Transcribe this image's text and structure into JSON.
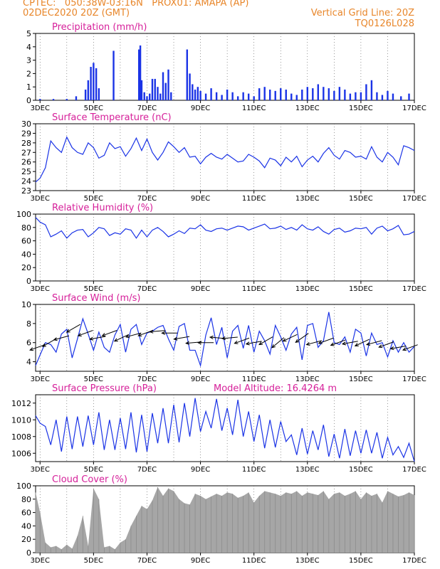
{
  "header": {
    "line1": "CPTEC:   050:38W-03:16N   PROX01: AMAPA (AP)",
    "line2_left": "02DEC2020 20Z (GMT)",
    "line2_right": "Vertical Grid Line: 20Z",
    "line3_right": "TQ0126L028"
  },
  "colors": {
    "header": "#e8862a",
    "title": "#d6209a",
    "line": "#1a33e6",
    "bars": "#1a33e6",
    "cloud": "#a6a6a6",
    "wind": "#000000"
  },
  "x_axis": {
    "day_start": 2.8333,
    "day_end": 17.0,
    "ticks": [
      {
        "day": 3,
        "label": "3DEC"
      },
      {
        "day": 5,
        "label": "5DEC"
      },
      {
        "day": 7,
        "label": "7DEC"
      },
      {
        "day": 9,
        "label": "9DEC"
      },
      {
        "day": 11,
        "label": "11DEC"
      },
      {
        "day": 13,
        "label": "13DEC"
      },
      {
        "day": 15,
        "label": "15DEC"
      },
      {
        "day": 17,
        "label": "17DEC"
      }
    ]
  },
  "chart_data": [
    {
      "id": "precip",
      "type": "bar",
      "title": "Precipitation (mm/h)",
      "units": "mm/h",
      "ylim": [
        0,
        5
      ],
      "yticks": [
        0,
        1,
        2,
        3,
        4,
        5
      ],
      "x_days": [
        3.0,
        3.5,
        4.0,
        4.35,
        4.7,
        4.8,
        4.9,
        5.0,
        5.1,
        5.2,
        5.75,
        6.7,
        6.75,
        6.8,
        6.9,
        7.0,
        7.1,
        7.2,
        7.3,
        7.4,
        7.5,
        7.6,
        7.7,
        7.8,
        7.9,
        8.5,
        8.6,
        8.7,
        8.8,
        8.9,
        9.0,
        9.2,
        9.4,
        9.6,
        9.8,
        10.0,
        10.2,
        10.4,
        10.6,
        10.8,
        11.0,
        11.2,
        11.4,
        11.6,
        11.8,
        12.0,
        12.2,
        12.4,
        12.6,
        12.8,
        13.0,
        13.2,
        13.4,
        13.6,
        13.8,
        14.0,
        14.2,
        14.4,
        14.6,
        14.8,
        15.0,
        15.2,
        15.4,
        15.6,
        15.8,
        16.0,
        16.2,
        16.5,
        16.8
      ],
      "values": [
        0.1,
        0.1,
        0.1,
        0.3,
        0.8,
        1.5,
        2.5,
        2.8,
        2.4,
        0.9,
        3.7,
        3.8,
        4.1,
        1.5,
        0.6,
        0.3,
        0.5,
        1.6,
        1.6,
        1.0,
        0.5,
        2.1,
        1.3,
        2.3,
        0.6,
        3.8,
        2.0,
        1.2,
        0.8,
        1.0,
        0.7,
        0.5,
        0.9,
        0.6,
        0.4,
        0.8,
        0.6,
        0.3,
        0.6,
        0.5,
        0.3,
        0.9,
        1.0,
        0.8,
        0.7,
        0.9,
        0.8,
        0.5,
        0.4,
        0.8,
        1.0,
        0.9,
        1.2,
        1.0,
        0.9,
        0.7,
        1.0,
        0.8,
        0.5,
        0.6,
        0.6,
        1.2,
        1.5,
        0.6,
        0.4,
        0.7,
        0.5,
        0.3,
        0.5
      ]
    },
    {
      "id": "temp",
      "type": "line",
      "title": "Surface Temperature (nC)",
      "units": "C",
      "ylim": [
        23,
        30
      ],
      "yticks": [
        23,
        24,
        25,
        26,
        27,
        28,
        29,
        30
      ],
      "x_days": [
        2.833,
        3.0,
        3.2,
        3.4,
        3.6,
        3.8,
        4.0,
        4.2,
        4.4,
        4.6,
        4.8,
        5.0,
        5.2,
        5.4,
        5.6,
        5.8,
        6.0,
        6.2,
        6.4,
        6.6,
        6.8,
        7.0,
        7.2,
        7.4,
        7.6,
        7.8,
        8.0,
        8.2,
        8.4,
        8.6,
        8.8,
        9.0,
        9.2,
        9.4,
        9.6,
        9.8,
        10.0,
        10.2,
        10.4,
        10.6,
        10.8,
        11.0,
        11.2,
        11.4,
        11.6,
        11.8,
        12.0,
        12.2,
        12.4,
        12.6,
        12.8,
        13.0,
        13.2,
        13.4,
        13.6,
        13.8,
        14.0,
        14.2,
        14.4,
        14.6,
        14.8,
        15.0,
        15.2,
        15.4,
        15.6,
        15.8,
        16.0,
        16.2,
        16.4,
        16.6,
        16.8,
        17.0
      ],
      "values": [
        23.9,
        24.3,
        25.4,
        28.2,
        27.5,
        27.0,
        28.6,
        27.5,
        27.0,
        26.8,
        28.0,
        27.5,
        26.4,
        26.7,
        28.0,
        27.4,
        27.6,
        26.6,
        27.4,
        28.5,
        27.2,
        28.4,
        27.0,
        26.2,
        27.0,
        28.1,
        27.6,
        27.0,
        27.5,
        26.5,
        26.6,
        25.8,
        26.5,
        26.9,
        26.5,
        26.3,
        26.8,
        26.4,
        26.0,
        26.1,
        26.8,
        26.5,
        26.1,
        25.4,
        26.4,
        26.2,
        25.6,
        26.5,
        26.0,
        26.6,
        25.5,
        26.2,
        26.6,
        26.0,
        26.9,
        27.5,
        26.7,
        26.3,
        27.2,
        27.0,
        26.5,
        26.6,
        26.3,
        27.6,
        26.5,
        26.0,
        27.0,
        26.5,
        25.7,
        27.7,
        27.5,
        27.2
      ]
    },
    {
      "id": "rh",
      "type": "line",
      "title": "Relative Humidity (%)",
      "units": "%",
      "ylim": [
        0,
        100
      ],
      "yticks": [
        0,
        20,
        40,
        60,
        80,
        100
      ],
      "x_days": [
        2.833,
        3.0,
        3.2,
        3.4,
        3.6,
        3.8,
        4.0,
        4.2,
        4.4,
        4.6,
        4.8,
        5.0,
        5.2,
        5.4,
        5.6,
        5.8,
        6.0,
        6.2,
        6.4,
        6.6,
        6.8,
        7.0,
        7.2,
        7.4,
        7.6,
        7.8,
        8.0,
        8.2,
        8.4,
        8.6,
        8.8,
        9.0,
        9.2,
        9.4,
        9.6,
        9.8,
        10.0,
        10.2,
        10.4,
        10.6,
        10.8,
        11.0,
        11.2,
        11.4,
        11.6,
        11.8,
        12.0,
        12.2,
        12.4,
        12.6,
        12.8,
        13.0,
        13.2,
        13.4,
        13.6,
        13.8,
        14.0,
        14.2,
        14.4,
        14.6,
        14.8,
        15.0,
        15.2,
        15.4,
        15.6,
        15.8,
        16.0,
        16.2,
        16.4,
        16.6,
        16.8,
        17.0
      ],
      "values": [
        95,
        88,
        84,
        66,
        70,
        75,
        64,
        72,
        76,
        77,
        66,
        72,
        80,
        78,
        68,
        72,
        70,
        78,
        76,
        64,
        76,
        66,
        76,
        80,
        74,
        66,
        70,
        75,
        71,
        79,
        78,
        84,
        76,
        74,
        78,
        79,
        76,
        79,
        82,
        81,
        76,
        79,
        82,
        85,
        78,
        79,
        82,
        77,
        80,
        76,
        84,
        78,
        76,
        81,
        74,
        70,
        77,
        79,
        73,
        75,
        79,
        78,
        80,
        70,
        79,
        82,
        75,
        78,
        83,
        69,
        70,
        74
      ]
    },
    {
      "id": "wind",
      "type": "line",
      "title": "Surface Wind (m/s)",
      "units": "m/s",
      "ylim": [
        3,
        10
      ],
      "yticks": [
        4,
        6,
        8,
        10
      ],
      "x_days": [
        2.833,
        3.0,
        3.2,
        3.4,
        3.6,
        3.8,
        4.0,
        4.2,
        4.4,
        4.6,
        4.8,
        5.0,
        5.2,
        5.4,
        5.6,
        5.8,
        6.0,
        6.2,
        6.4,
        6.6,
        6.8,
        7.0,
        7.2,
        7.4,
        7.6,
        7.8,
        8.0,
        8.2,
        8.4,
        8.6,
        8.8,
        9.0,
        9.2,
        9.4,
        9.6,
        9.8,
        10.0,
        10.2,
        10.4,
        10.6,
        10.8,
        11.0,
        11.2,
        11.4,
        11.6,
        11.8,
        12.0,
        12.2,
        12.4,
        12.6,
        12.8,
        13.0,
        13.2,
        13.4,
        13.6,
        13.8,
        14.0,
        14.2,
        14.4,
        14.6,
        14.8,
        15.0,
        15.2,
        15.4,
        15.6,
        15.8,
        16.0,
        16.2,
        16.4,
        16.6,
        16.8,
        17.0
      ],
      "values": [
        3.6,
        4.7,
        6.0,
        5.8,
        5.0,
        6.9,
        7.4,
        4.4,
        6.4,
        8.5,
        6.9,
        5.2,
        7.1,
        5.5,
        5.0,
        6.8,
        7.9,
        5.0,
        7.4,
        7.9,
        5.8,
        7.0,
        7.2,
        7.6,
        7.8,
        6.4,
        5.2,
        7.7,
        8.0,
        5.2,
        5.2,
        3.6,
        6.8,
        8.6,
        5.8,
        7.6,
        4.4,
        7.2,
        7.8,
        5.4,
        7.8,
        5.0,
        7.2,
        6.2,
        4.8,
        7.8,
        6.6,
        5.2,
        6.9,
        7.6,
        4.2,
        7.8,
        8.0,
        5.5,
        6.2,
        9.2,
        6.0,
        5.8,
        6.6,
        5.0,
        7.4,
        7.0,
        4.6,
        7.0,
        5.8,
        6.0,
        4.5,
        6.2,
        5.0,
        6.0,
        5.0,
        5.6
      ]
    },
    {
      "id": "pressure",
      "type": "line",
      "title": "Surface Pressure (hPa)",
      "annotation": "Model Altitude: 16.4264 m",
      "units": "hPa",
      "ylim": [
        1005,
        1013
      ],
      "yticks": [
        1006,
        1008,
        1010,
        1012
      ],
      "x_days": [
        2.833,
        3.0,
        3.2,
        3.4,
        3.6,
        3.8,
        4.0,
        4.2,
        4.4,
        4.6,
        4.8,
        5.0,
        5.2,
        5.4,
        5.6,
        5.8,
        6.0,
        6.2,
        6.4,
        6.6,
        6.8,
        7.0,
        7.2,
        7.4,
        7.6,
        7.8,
        8.0,
        8.2,
        8.4,
        8.6,
        8.8,
        9.0,
        9.2,
        9.4,
        9.6,
        9.8,
        10.0,
        10.2,
        10.4,
        10.6,
        10.8,
        11.0,
        11.2,
        11.4,
        11.6,
        11.8,
        12.0,
        12.2,
        12.4,
        12.6,
        12.8,
        13.0,
        13.2,
        13.4,
        13.6,
        13.8,
        14.0,
        14.2,
        14.4,
        14.6,
        14.8,
        15.0,
        15.2,
        15.4,
        15.6,
        15.8,
        16.0,
        16.2,
        16.4,
        16.6,
        16.8,
        17.0
      ],
      "values": [
        1010.5,
        1009.6,
        1009.2,
        1007.0,
        1010.0,
        1006.2,
        1010.4,
        1006.5,
        1010.4,
        1006.8,
        1010.5,
        1007.0,
        1010.9,
        1006.4,
        1010.0,
        1006.4,
        1010.2,
        1006.5,
        1010.9,
        1006.1,
        1010.6,
        1006.2,
        1010.8,
        1007.2,
        1011.4,
        1007.2,
        1011.8,
        1007.3,
        1012.0,
        1008.0,
        1012.6,
        1008.6,
        1011.0,
        1009.0,
        1012.5,
        1008.7,
        1011.4,
        1008.2,
        1012.4,
        1008.0,
        1011.0,
        1007.4,
        1010.6,
        1006.6,
        1010.0,
        1006.7,
        1009.8,
        1007.4,
        1008.2,
        1005.8,
        1009.0,
        1005.9,
        1008.7,
        1006.4,
        1009.4,
        1005.6,
        1008.3,
        1005.4,
        1008.9,
        1005.7,
        1008.7,
        1006.0,
        1008.8,
        1006.0,
        1008.5,
        1005.4,
        1007.9,
        1005.8,
        1006.8,
        1005.5,
        1007.2,
        1005.0
      ]
    },
    {
      "id": "cloud",
      "type": "bar",
      "title": "Cloud Cover (%)",
      "units": "%",
      "ylim": [
        0,
        100
      ],
      "yticks": [
        0,
        20,
        40,
        60,
        80,
        100
      ],
      "x_days": [
        2.833,
        3.0,
        3.2,
        3.4,
        3.6,
        3.8,
        4.0,
        4.2,
        4.4,
        4.6,
        4.8,
        5.0,
        5.2,
        5.4,
        5.6,
        5.8,
        6.0,
        6.2,
        6.4,
        6.6,
        6.8,
        7.0,
        7.2,
        7.4,
        7.6,
        7.8,
        8.0,
        8.2,
        8.4,
        8.6,
        8.8,
        9.0,
        9.2,
        9.4,
        9.6,
        9.8,
        10.0,
        10.2,
        10.4,
        10.6,
        10.8,
        11.0,
        11.2,
        11.4,
        11.6,
        11.8,
        12.0,
        12.2,
        12.4,
        12.6,
        12.8,
        13.0,
        13.2,
        13.4,
        13.6,
        13.8,
        14.0,
        14.2,
        14.4,
        14.6,
        14.8,
        15.0,
        15.2,
        15.4,
        15.6,
        15.8,
        16.0,
        16.2,
        16.4,
        16.6,
        16.8,
        17.0
      ],
      "values": [
        90,
        60,
        15,
        8,
        10,
        5,
        12,
        6,
        25,
        55,
        10,
        96,
        80,
        8,
        10,
        5,
        15,
        20,
        40,
        55,
        70,
        65,
        78,
        98,
        85,
        96,
        92,
        80,
        74,
        72,
        88,
        85,
        80,
        84,
        88,
        85,
        90,
        88,
        82,
        85,
        90,
        75,
        85,
        92,
        90,
        88,
        85,
        90,
        88,
        92,
        85,
        90,
        88,
        86,
        92,
        80,
        88,
        90,
        85,
        88,
        92,
        80,
        90,
        85,
        88,
        75,
        92,
        88,
        84,
        86,
        90,
        86
      ]
    }
  ],
  "wind_vectors": {
    "x_days": [
      2.9,
      3.35,
      3.8,
      4.25,
      4.7,
      5.15,
      5.6,
      6.05,
      6.5,
      6.95,
      7.4,
      7.85,
      8.3,
      8.75,
      9.2,
      9.65,
      10.1,
      10.55,
      11.0,
      11.45,
      11.9,
      12.35,
      12.8,
      13.25,
      13.7,
      14.15,
      14.6,
      15.05,
      15.5,
      15.95,
      16.4,
      16.85
    ],
    "speed": [
      5.5,
      6.0,
      6.5,
      7.5,
      7.0,
      6.5,
      7.0,
      6.5,
      6.8,
      7.0,
      7.2,
      7.0,
      6.5,
      6.0,
      6.0,
      6.5,
      6.5,
      6.2,
      6.0,
      6.2,
      6.0,
      6.5,
      6.5,
      6.0,
      6.2,
      6.0,
      6.0,
      6.0,
      6.0,
      5.8,
      5.5,
      5.5
    ],
    "direction_deg_to": [
      200,
      210,
      195,
      210,
      200,
      190,
      200,
      205,
      195,
      200,
      185,
      180,
      190,
      185,
      180,
      175,
      185,
      200,
      190,
      210,
      220,
      205,
      215,
      195,
      200,
      200,
      190,
      205,
      195,
      200,
      190,
      200
    ]
  }
}
